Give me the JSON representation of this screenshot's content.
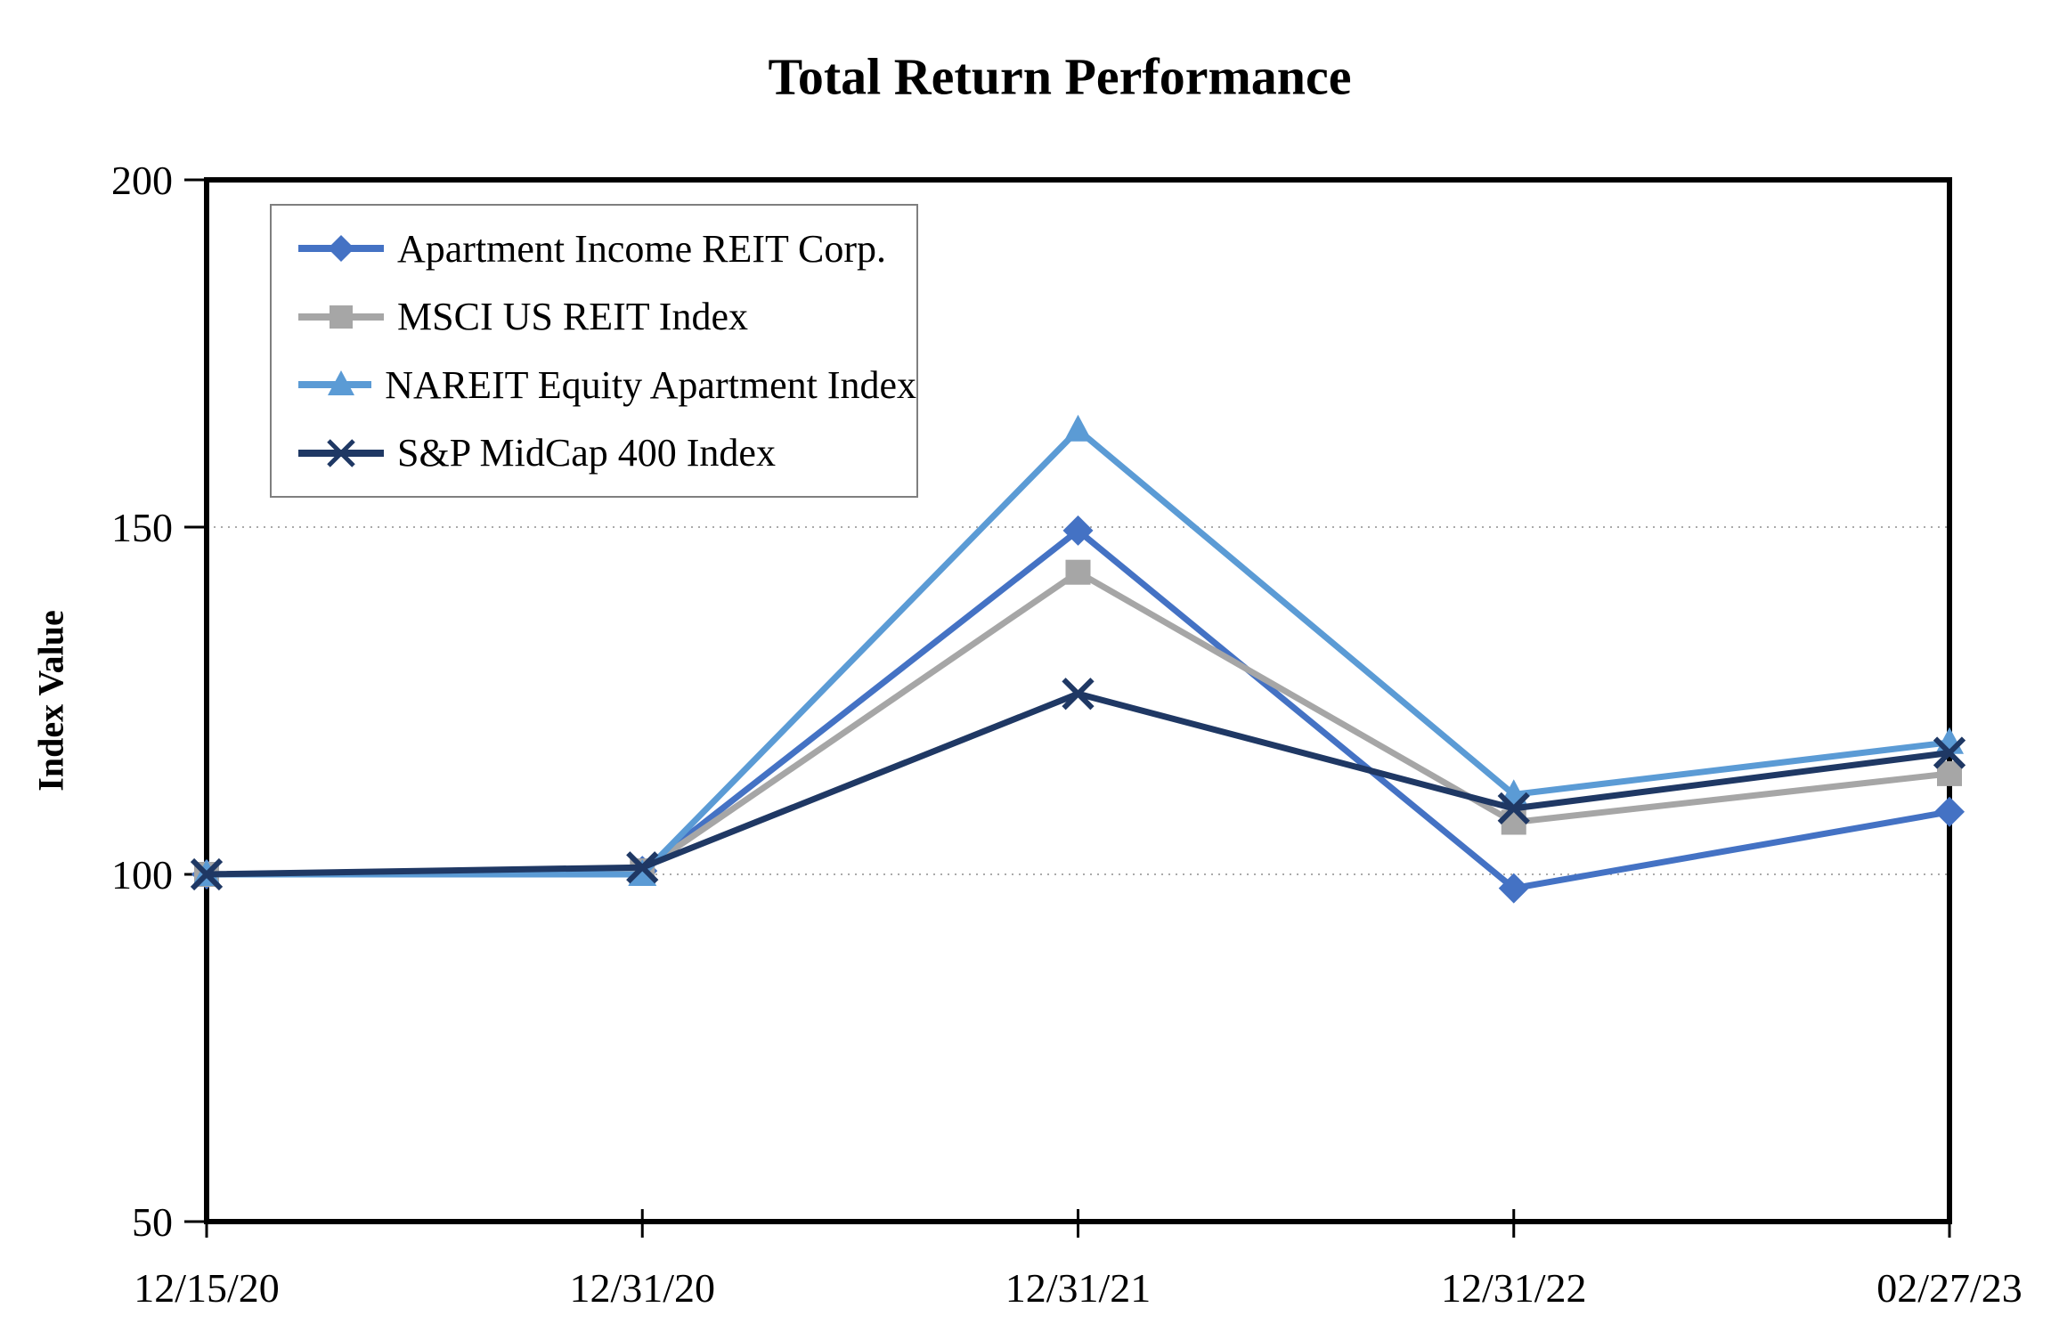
{
  "chart_data": {
    "type": "line",
    "title": "Total Return Performance",
    "ylabel": "Index Value",
    "xlabel": "",
    "ylim": [
      50,
      200
    ],
    "yticks": [
      50,
      100,
      150,
      200
    ],
    "gridline_values": [
      100,
      150
    ],
    "grid_style": "dotted-horizontal",
    "legend_position": "top-left-inside",
    "categories": [
      "12/15/20",
      "12/31/20",
      "12/31/21",
      "12/31/22",
      "02/27/23"
    ],
    "series": [
      {
        "name": "Apartment Income REIT Corp.",
        "marker": "diamond",
        "color": "#4472C4",
        "values": [
          100,
          100.5,
          149.5,
          98,
          109
        ]
      },
      {
        "name": "MSCI US REIT Index",
        "marker": "square",
        "color": "#A6A6A6",
        "values": [
          100,
          100.5,
          143.5,
          107.5,
          114.5
        ]
      },
      {
        "name": "NAREIT Equity Apartment Index",
        "marker": "triangle",
        "color": "#5B9BD5",
        "values": [
          100,
          100,
          164,
          111.5,
          119
        ]
      },
      {
        "name": "S&P MidCap 400 Index",
        "marker": "x",
        "color": "#1F3864",
        "values": [
          100,
          101,
          126,
          109.5,
          117.5
        ]
      }
    ],
    "colors": {
      "axis": "#000000",
      "gridline": "#AAAAAA",
      "legend_border": "#7f7f7f",
      "background": "#FFFFFF"
    }
  }
}
